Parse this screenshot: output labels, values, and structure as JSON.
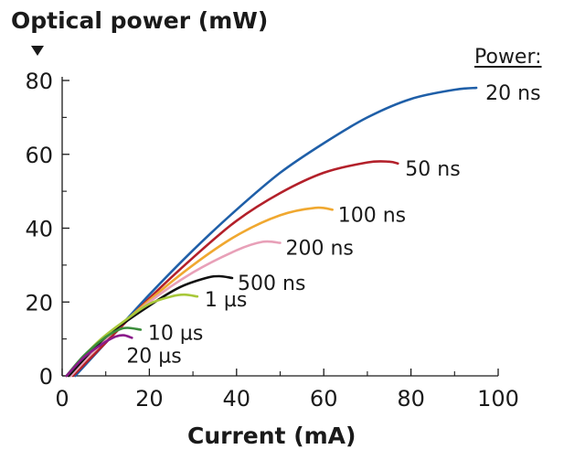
{
  "chart_data": {
    "type": "line",
    "title": "",
    "ylabel": "Optical power (mW)",
    "xlabel": "Current (mA)",
    "legend_title": "Power:",
    "xlim": [
      0,
      100
    ],
    "ylim": [
      0,
      80
    ],
    "x_ticks": [
      "0",
      "20",
      "40",
      "60",
      "80",
      "100"
    ],
    "y_ticks": [
      "0",
      "20",
      "40",
      "60",
      "80"
    ],
    "grid": false,
    "series": [
      {
        "name": "20 ns",
        "color": "#1f5fa8",
        "points": [
          [
            3,
            0
          ],
          [
            10,
            9
          ],
          [
            20,
            22
          ],
          [
            30,
            34
          ],
          [
            40,
            45
          ],
          [
            50,
            55
          ],
          [
            60,
            63
          ],
          [
            70,
            70
          ],
          [
            80,
            75
          ],
          [
            90,
            77.5
          ],
          [
            95,
            78
          ]
        ]
      },
      {
        "name": "50 ns",
        "color": "#b3202a",
        "points": [
          [
            2.5,
            0
          ],
          [
            10,
            9
          ],
          [
            20,
            21
          ],
          [
            30,
            32
          ],
          [
            40,
            42
          ],
          [
            50,
            49.5
          ],
          [
            60,
            55
          ],
          [
            70,
            57.8
          ],
          [
            75,
            58
          ],
          [
            77,
            57.5
          ]
        ]
      },
      {
        "name": "100 ns",
        "color": "#f0a830",
        "points": [
          [
            2,
            0
          ],
          [
            10,
            10
          ],
          [
            20,
            20.5
          ],
          [
            30,
            30
          ],
          [
            40,
            38
          ],
          [
            50,
            43.5
          ],
          [
            58,
            45.5
          ],
          [
            62,
            45
          ]
        ]
      },
      {
        "name": "200 ns",
        "color": "#e8a0b8",
        "points": [
          [
            2,
            0
          ],
          [
            10,
            10
          ],
          [
            20,
            20
          ],
          [
            30,
            28
          ],
          [
            40,
            34
          ],
          [
            46,
            36.3
          ],
          [
            50,
            36
          ]
        ]
      },
      {
        "name": "500 ns",
        "color": "#111111",
        "points": [
          [
            1.5,
            0
          ],
          [
            10,
            10.5
          ],
          [
            20,
            19
          ],
          [
            27,
            24
          ],
          [
            33,
            26.5
          ],
          [
            36,
            27
          ],
          [
            39,
            26.5
          ]
        ]
      },
      {
        "name": "1 µs",
        "color": "#a8c83a",
        "points": [
          [
            1,
            0
          ],
          [
            8,
            9
          ],
          [
            15,
            15.5
          ],
          [
            20,
            19.5
          ],
          [
            25,
            21.5
          ],
          [
            28,
            22
          ],
          [
            31,
            21.5
          ]
        ]
      },
      {
        "name": "10 µs",
        "color": "#3a8c3a",
        "points": [
          [
            1,
            0
          ],
          [
            5,
            5.5
          ],
          [
            10,
            10.5
          ],
          [
            13,
            12.5
          ],
          [
            15,
            13
          ],
          [
            18,
            12.5
          ]
        ]
      },
      {
        "name": "20 µs",
        "color": "#8a1a8a",
        "points": [
          [
            1,
            0
          ],
          [
            5,
            5
          ],
          [
            9,
            8.5
          ],
          [
            12,
            10.5
          ],
          [
            14,
            11
          ],
          [
            16,
            10.3
          ]
        ]
      }
    ]
  }
}
